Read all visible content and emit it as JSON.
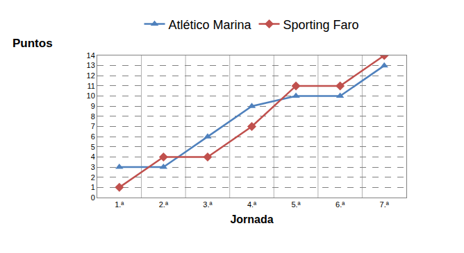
{
  "chart_data": {
    "type": "line",
    "x_label": "Jornada",
    "y_label": "Puntos",
    "categories": [
      "1.ª",
      "2.ª",
      "3.ª",
      "4.ª",
      "5.ª",
      "6.ª",
      "7.ª"
    ],
    "series": [
      {
        "name": "Atlético Marina",
        "color": "#4f81bd",
        "marker": "triangle-up",
        "line_style": "solid",
        "values": [
          3,
          3,
          6,
          9,
          10,
          10,
          13
        ]
      },
      {
        "name": "Sporting Faro",
        "color": "#c0504d",
        "marker": "diamond",
        "line_style": "solid",
        "values": [
          1,
          4,
          4,
          7,
          11,
          11,
          14
        ]
      }
    ],
    "ylim": [
      0,
      14
    ],
    "yticks": [
      0,
      1,
      2,
      3,
      4,
      5,
      6,
      7,
      8,
      9,
      10,
      11,
      12,
      13,
      14
    ],
    "grid": true,
    "legend": "top"
  }
}
